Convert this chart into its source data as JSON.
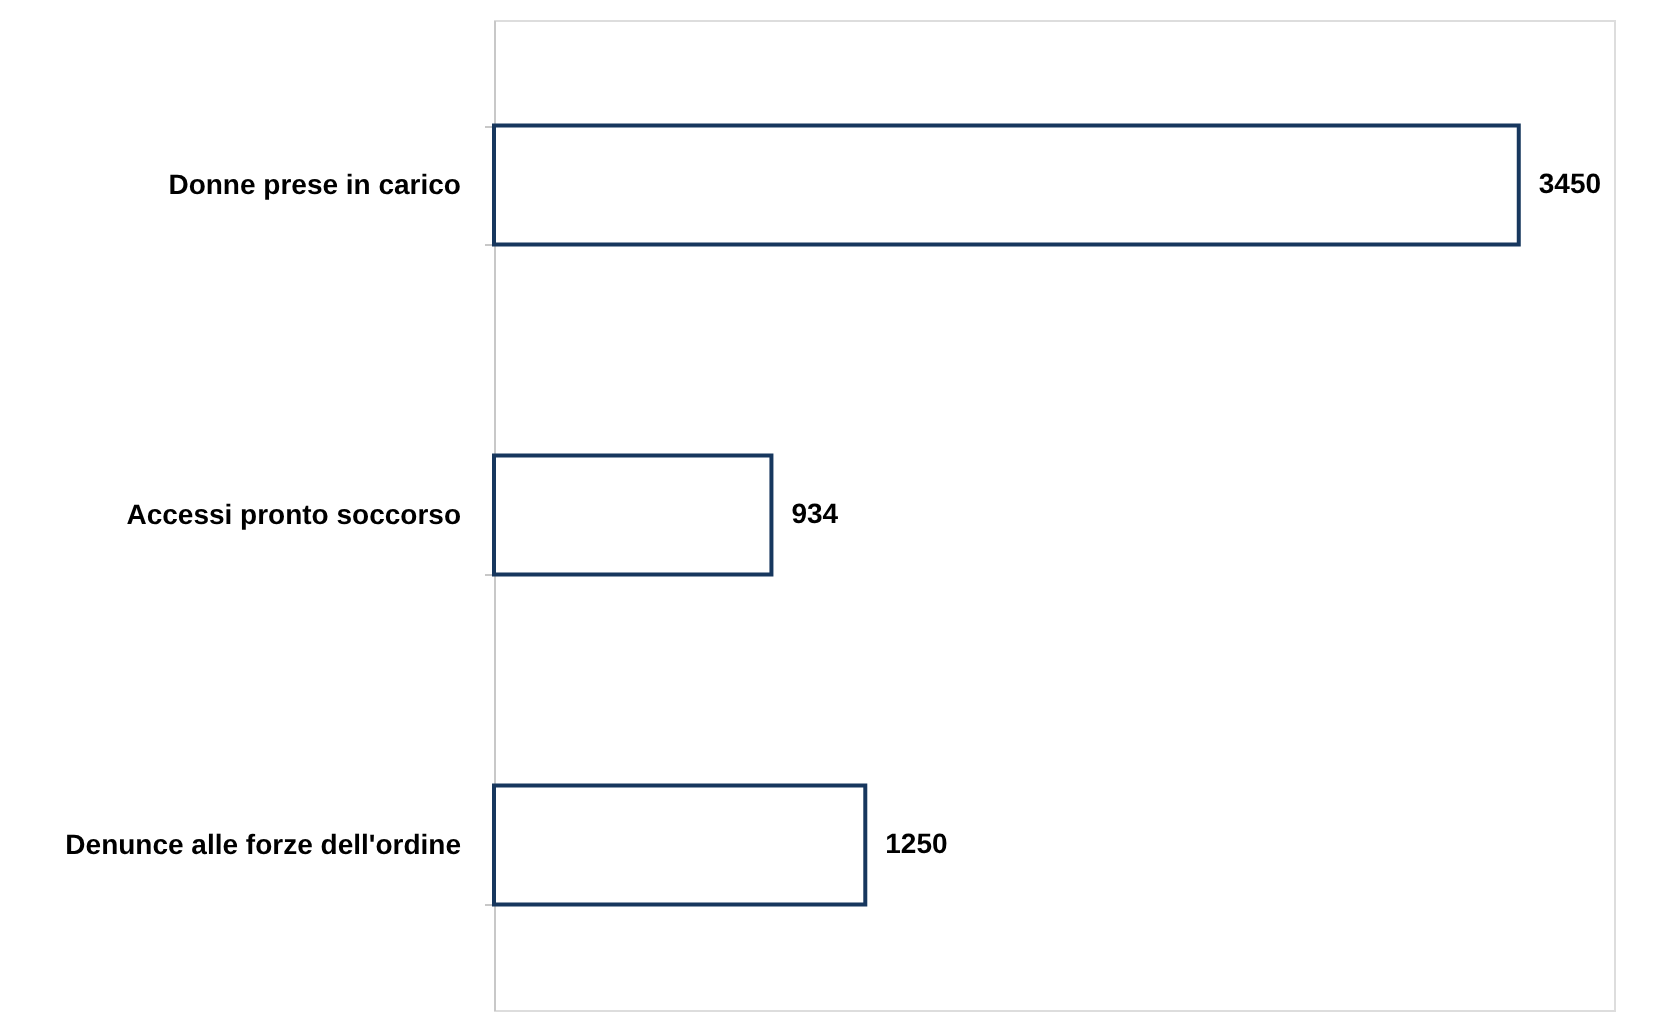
{
  "chart_data": {
    "type": "bar",
    "orientation": "horizontal",
    "categories": [
      "Donne prese in carico",
      "Accessi pronto soccorso",
      "Denunce alle forze dell'ordine"
    ],
    "values": [
      3450,
      934,
      1250
    ],
    "color": "#17375e",
    "data_labels": true
  }
}
